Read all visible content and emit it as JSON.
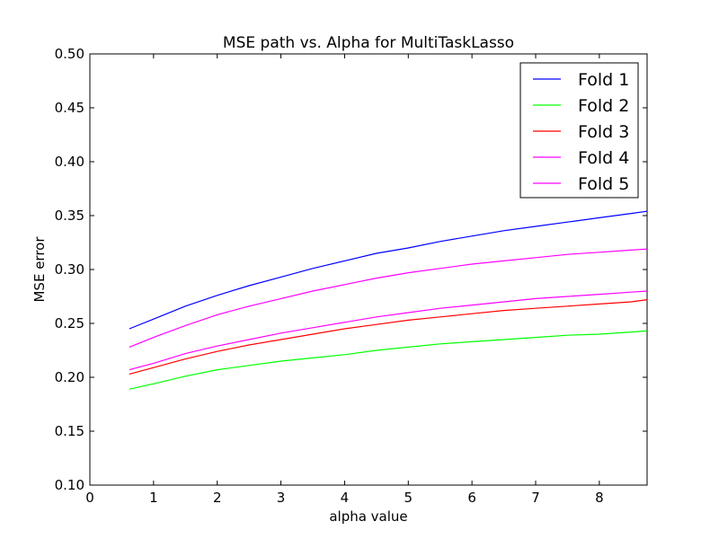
{
  "chart_data": {
    "type": "line",
    "title": "MSE path vs. Alpha for MultiTaskLasso",
    "xlabel": "alpha value",
    "ylabel": "MSE error",
    "xlim": [
      0,
      8.75
    ],
    "ylim": [
      0.1,
      0.5
    ],
    "xticks": [
      "0",
      "1",
      "2",
      "3",
      "4",
      "5",
      "6",
      "7",
      "8"
    ],
    "yticks": [
      "0.10",
      "0.15",
      "0.20",
      "0.25",
      "0.30",
      "0.35",
      "0.40",
      "0.45",
      "0.50"
    ],
    "grid": false,
    "legend_position": "top-right",
    "x": [
      0.62,
      1.0,
      1.5,
      2.0,
      2.5,
      3.0,
      3.5,
      4.0,
      4.5,
      5.0,
      5.5,
      6.0,
      6.5,
      7.0,
      7.5,
      8.0,
      8.5,
      8.75
    ],
    "series": [
      {
        "name": "Fold 1",
        "color": "#0000ff",
        "values": [
          0.245,
          0.254,
          0.266,
          0.276,
          0.285,
          0.293,
          0.301,
          0.308,
          0.315,
          0.32,
          0.326,
          0.331,
          0.336,
          0.34,
          0.344,
          0.348,
          0.352,
          0.354
        ]
      },
      {
        "name": "Fold 2",
        "color": "#00ff00",
        "values": [
          0.189,
          0.194,
          0.201,
          0.207,
          0.211,
          0.215,
          0.218,
          0.221,
          0.225,
          0.228,
          0.231,
          0.233,
          0.235,
          0.237,
          0.239,
          0.24,
          0.242,
          0.243
        ]
      },
      {
        "name": "Fold 3",
        "color": "#ff0000",
        "values": [
          0.203,
          0.209,
          0.217,
          0.224,
          0.23,
          0.235,
          0.24,
          0.245,
          0.249,
          0.253,
          0.256,
          0.259,
          0.262,
          0.264,
          0.266,
          0.268,
          0.27,
          0.272
        ]
      },
      {
        "name": "Fold 4",
        "color": "#ff00ff",
        "values": [
          0.207,
          0.213,
          0.222,
          0.229,
          0.235,
          0.241,
          0.246,
          0.251,
          0.256,
          0.26,
          0.264,
          0.267,
          0.27,
          0.273,
          0.275,
          0.277,
          0.279,
          0.28
        ]
      },
      {
        "name": "Fold 5",
        "color": "#ff00ff",
        "values": [
          0.228,
          0.237,
          0.248,
          0.258,
          0.266,
          0.273,
          0.28,
          0.286,
          0.292,
          0.297,
          0.301,
          0.305,
          0.308,
          0.311,
          0.314,
          0.316,
          0.318,
          0.319
        ]
      }
    ]
  }
}
